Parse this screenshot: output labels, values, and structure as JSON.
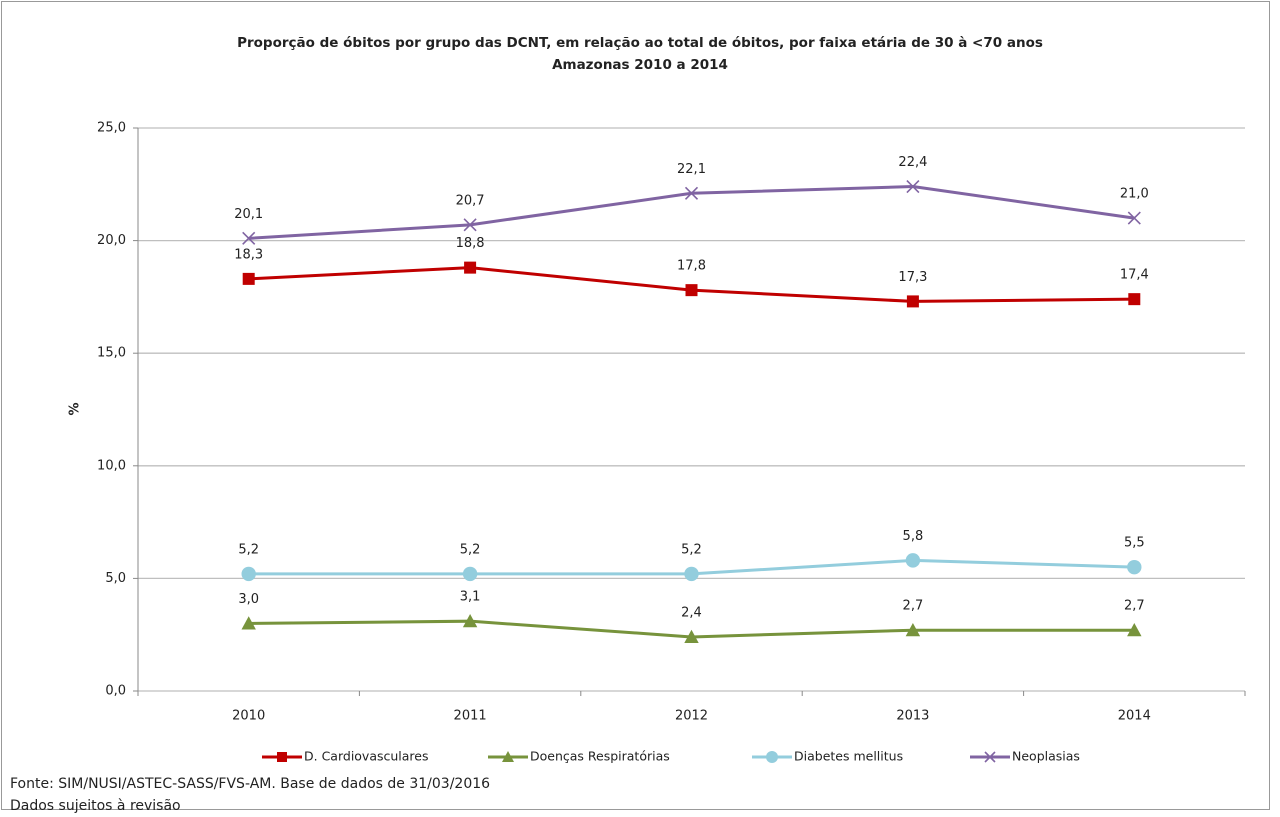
{
  "chart_data": {
    "type": "line",
    "title": "Proporção  de óbitos por grupo das DCNT, em relação ao total de óbitos, por faixa etária de 30 à <70 anos",
    "subtitle": "Amazonas 2010 a 2014",
    "ylabel": "%",
    "categories": [
      "2010",
      "2011",
      "2012",
      "2013",
      "2014"
    ],
    "series": [
      {
        "name": "D. Cardiovasculares",
        "color": "#c00000",
        "marker": "square",
        "values": [
          18.3,
          18.8,
          17.8,
          17.3,
          17.4
        ],
        "value_labels": [
          "18,3",
          "18,8",
          "17,8",
          "17,3",
          "17,4"
        ]
      },
      {
        "name": "Doenças Respiratórias",
        "color": "#77933c",
        "marker": "triangle",
        "values": [
          3.0,
          3.1,
          2.4,
          2.7,
          2.7
        ],
        "value_labels": [
          "3,0",
          "3,1",
          "2,4",
          "2,7",
          "2,7"
        ]
      },
      {
        "name": "Diabetes mellitus",
        "color": "#93cddd",
        "marker": "circle",
        "values": [
          5.2,
          5.2,
          5.2,
          5.8,
          5.5
        ],
        "value_labels": [
          "5,2",
          "5,2",
          "5,2",
          "5,8",
          "5,5"
        ]
      },
      {
        "name": "Neoplasias",
        "color": "#8064a2",
        "marker": "x",
        "values": [
          20.1,
          20.7,
          22.1,
          22.4,
          21.0
        ],
        "value_labels": [
          "20,1",
          "20,7",
          "22,1",
          "22,4",
          "21,0"
        ]
      }
    ],
    "ylim": [
      0,
      25
    ],
    "yticks": [
      {
        "value": 0,
        "label": "0,0"
      },
      {
        "value": 5,
        "label": "5,0"
      },
      {
        "value": 10,
        "label": "10,0"
      },
      {
        "value": 15,
        "label": "15,0"
      },
      {
        "value": 20,
        "label": "20,0"
      },
      {
        "value": 25,
        "label": "25,0"
      }
    ],
    "grid": true,
    "legend": "bottom",
    "source": "Fonte: SIM/NUSI/ASTEC-SASS/FVS-AM. Base de dados de 31/03/2016",
    "note": "Dados sujeitos à revisão"
  }
}
